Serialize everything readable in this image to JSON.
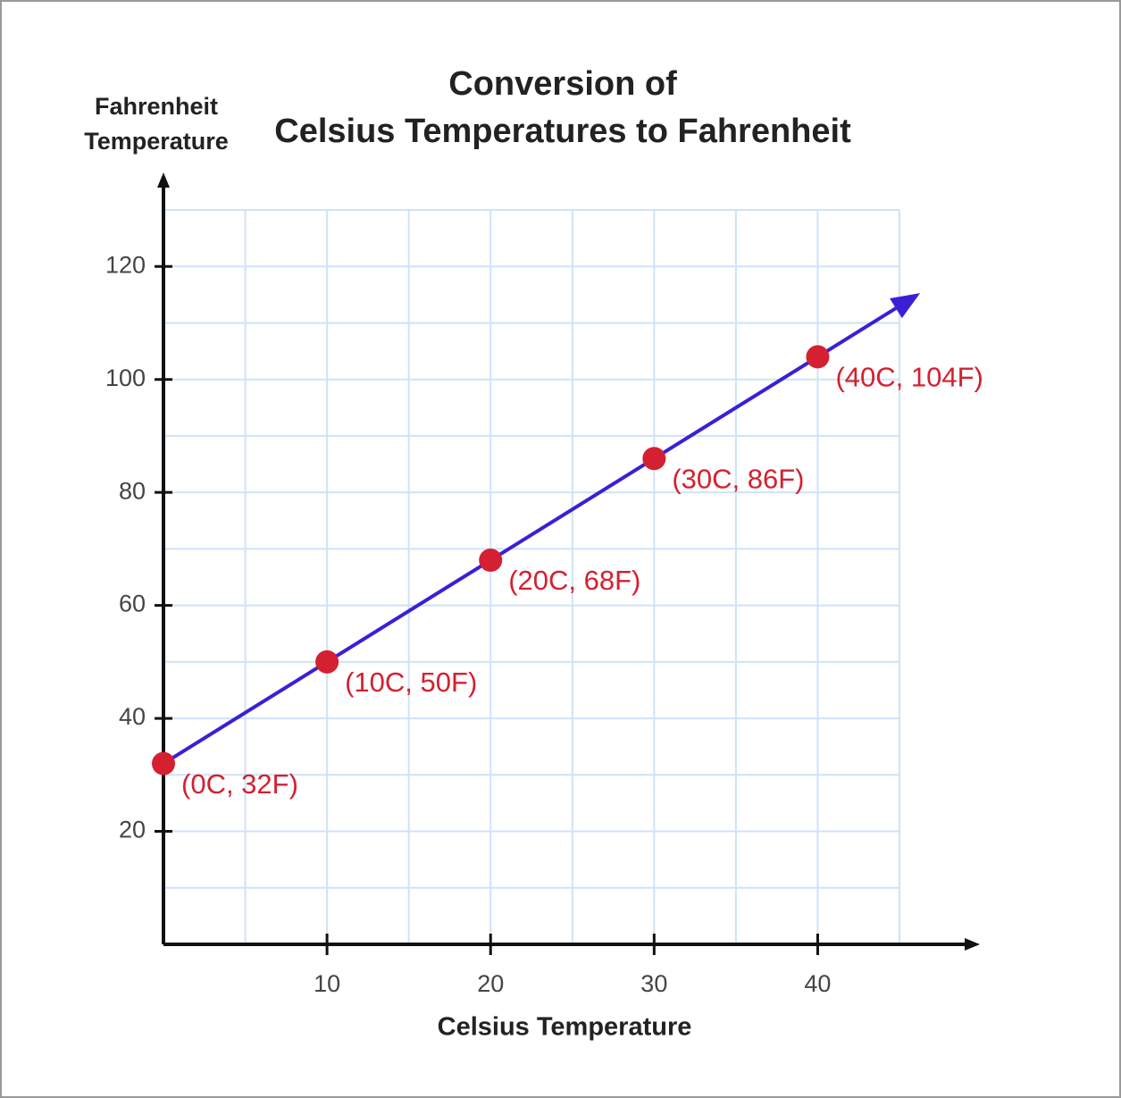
{
  "chart_data": {
    "type": "line",
    "title": [
      "Conversion of",
      "Celsius Temperatures to Fahrenheit"
    ],
    "y_label": [
      "Fahrenheit",
      "Temperature"
    ],
    "x_label": "Celsius Temperature",
    "x": [
      0,
      10,
      20,
      30,
      40
    ],
    "series": [
      {
        "color": "#3b1fd6",
        "marker_color": "#d42030",
        "values": [
          32,
          50,
          68,
          86,
          104
        ],
        "value_labels": [
          "(0C, 32F)",
          "(10C, 50F)",
          "(20C, 68F)",
          "(30C, 86F)",
          "(40C, 104F)"
        ]
      }
    ],
    "xlim": [
      0,
      45
    ],
    "ylim": [
      0,
      130
    ],
    "xticks": [
      10,
      20,
      30,
      40
    ],
    "yticks": [
      20,
      40,
      60,
      80,
      100,
      120
    ],
    "xgrid": [
      5,
      10,
      15,
      20,
      25,
      30,
      35,
      40,
      45
    ],
    "ygrid": [
      10,
      20,
      30,
      40,
      50,
      60,
      70,
      80,
      90,
      100,
      110,
      120,
      130
    ],
    "grid_color": "#cfe2f8"
  }
}
